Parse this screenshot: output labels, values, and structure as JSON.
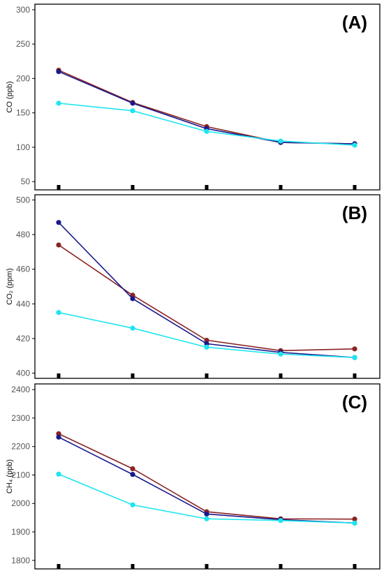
{
  "chart_data": [
    {
      "type": "line",
      "panel_label": "(A)",
      "ylabel": "CO (ppb)",
      "ylim": [
        38,
        308
      ],
      "yticks": [
        50,
        100,
        150,
        200,
        250,
        300
      ],
      "x": [
        1,
        2,
        3,
        4,
        5
      ],
      "series": [
        {
          "color": "#1a1a8c",
          "values": [
            210,
            164,
            127,
            107,
            105
          ]
        },
        {
          "color": "#8b2323",
          "values": [
            212,
            165,
            130,
            107,
            105
          ]
        },
        {
          "color": "#1ee5f0",
          "values": [
            164,
            153,
            123,
            109,
            103
          ]
        }
      ]
    },
    {
      "type": "line",
      "panel_label": "(B)",
      "ylabel": "CO₂ (ppm)",
      "ylim": [
        397,
        503
      ],
      "yticks": [
        400,
        420,
        440,
        460,
        480,
        500
      ],
      "x": [
        1,
        2,
        3,
        4,
        5
      ],
      "series": [
        {
          "color": "#1a1a8c",
          "values": [
            487,
            443,
            417,
            412,
            409
          ]
        },
        {
          "color": "#8b2323",
          "values": [
            474,
            445,
            419,
            413,
            414
          ]
        },
        {
          "color": "#1ee5f0",
          "values": [
            435,
            426,
            415,
            411,
            409
          ]
        }
      ]
    },
    {
      "type": "line",
      "panel_label": "(C)",
      "ylabel": "CH₄ (ppb)",
      "ylim": [
        1770,
        2420
      ],
      "yticks": [
        1800,
        1900,
        2000,
        2100,
        2200,
        2300,
        2400
      ],
      "x": [
        1,
        2,
        3,
        4,
        5
      ],
      "series": [
        {
          "color": "#1a1a8c",
          "values": [
            2233,
            2102,
            1963,
            1943,
            1931
          ]
        },
        {
          "color": "#8b2323",
          "values": [
            2245,
            2122,
            1971,
            1946,
            1945
          ]
        },
        {
          "color": "#1ee5f0",
          "values": [
            2103,
            1995,
            1946,
            1940,
            1931
          ]
        }
      ]
    }
  ]
}
